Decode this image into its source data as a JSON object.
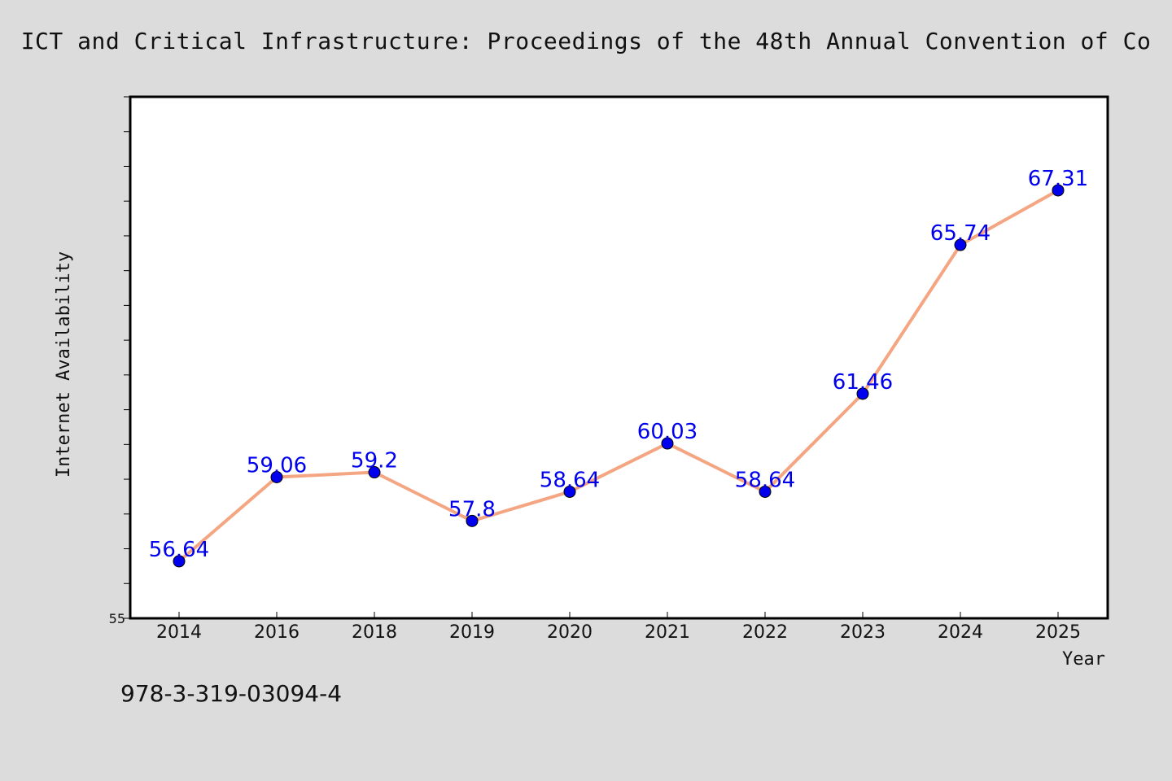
{
  "chart_data": {
    "type": "line",
    "title": "ICT and Critical Infrastructure: Proceedings of the 48th Annual Convention of Co",
    "xlabel": "Year",
    "ylabel": "Internet Availability",
    "categories": [
      "2014",
      "2016",
      "2018",
      "2019",
      "2020",
      "2021",
      "2022",
      "2023",
      "2024",
      "2025"
    ],
    "series": [
      {
        "values": [
          56.64,
          59.06,
          59.2,
          57.8,
          58.64,
          60.03,
          58.64,
          61.46,
          65.74,
          67.31
        ],
        "labels": [
          "56.64",
          "59.06",
          "59.2",
          "57.8",
          "58.64",
          "60.03",
          "58.64",
          "61.46",
          "65.74",
          "67.31"
        ]
      }
    ],
    "ylim": [
      55,
      70
    ],
    "yticks_labeled": [
      "55"
    ],
    "grid": false,
    "colors": {
      "line": "#f4a582",
      "marker": "#0000ee",
      "data_label": "#0000ee",
      "plot_background": "#ffffff",
      "figure_background": "#dcdcdc"
    }
  },
  "footnote": "978-3-319-03094-4"
}
